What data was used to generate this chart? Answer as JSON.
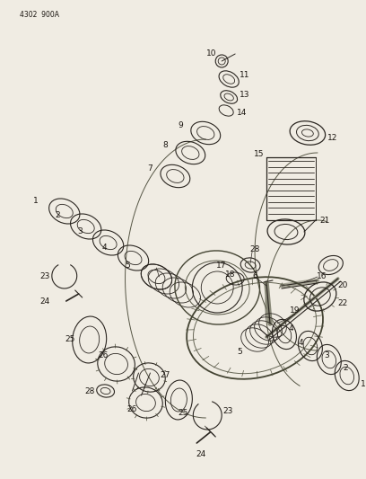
{
  "bg_color": "#f0ece3",
  "line_color": "#2a2520",
  "text_color": "#1a1510",
  "diagram_id": "4302 900A",
  "fig_width": 4.08,
  "fig_height": 5.33,
  "dpi": 100
}
